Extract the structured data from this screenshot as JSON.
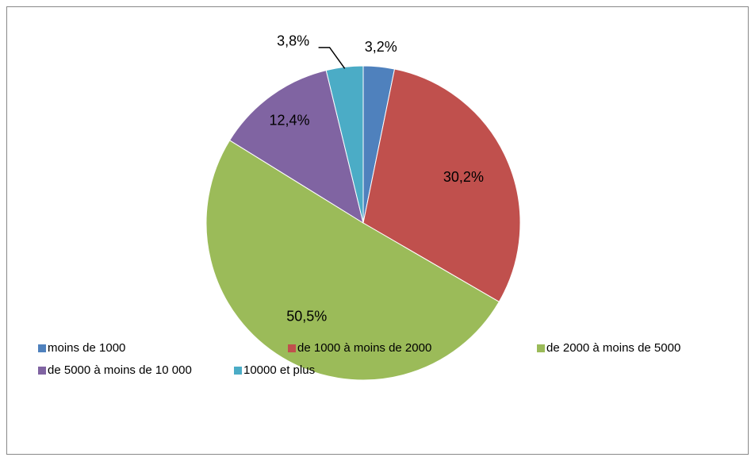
{
  "chart_data": {
    "type": "pie",
    "categories": [
      "moins de 1000",
      "de 1000 à moins de 2000",
      "de 2000 à moins de 5000",
      "de 5000 à moins de 10 000",
      "10000 et plus"
    ],
    "values": [
      3.2,
      30.2,
      50.5,
      12.4,
      3.8
    ],
    "value_labels": [
      "3,2%",
      "30,2%",
      "50,5%",
      "12,4%",
      "3,8%"
    ],
    "colors": [
      "#4F81BD",
      "#C0504D",
      "#9BBB59",
      "#8064A2",
      "#4BACC6"
    ],
    "legend": "bottom"
  }
}
